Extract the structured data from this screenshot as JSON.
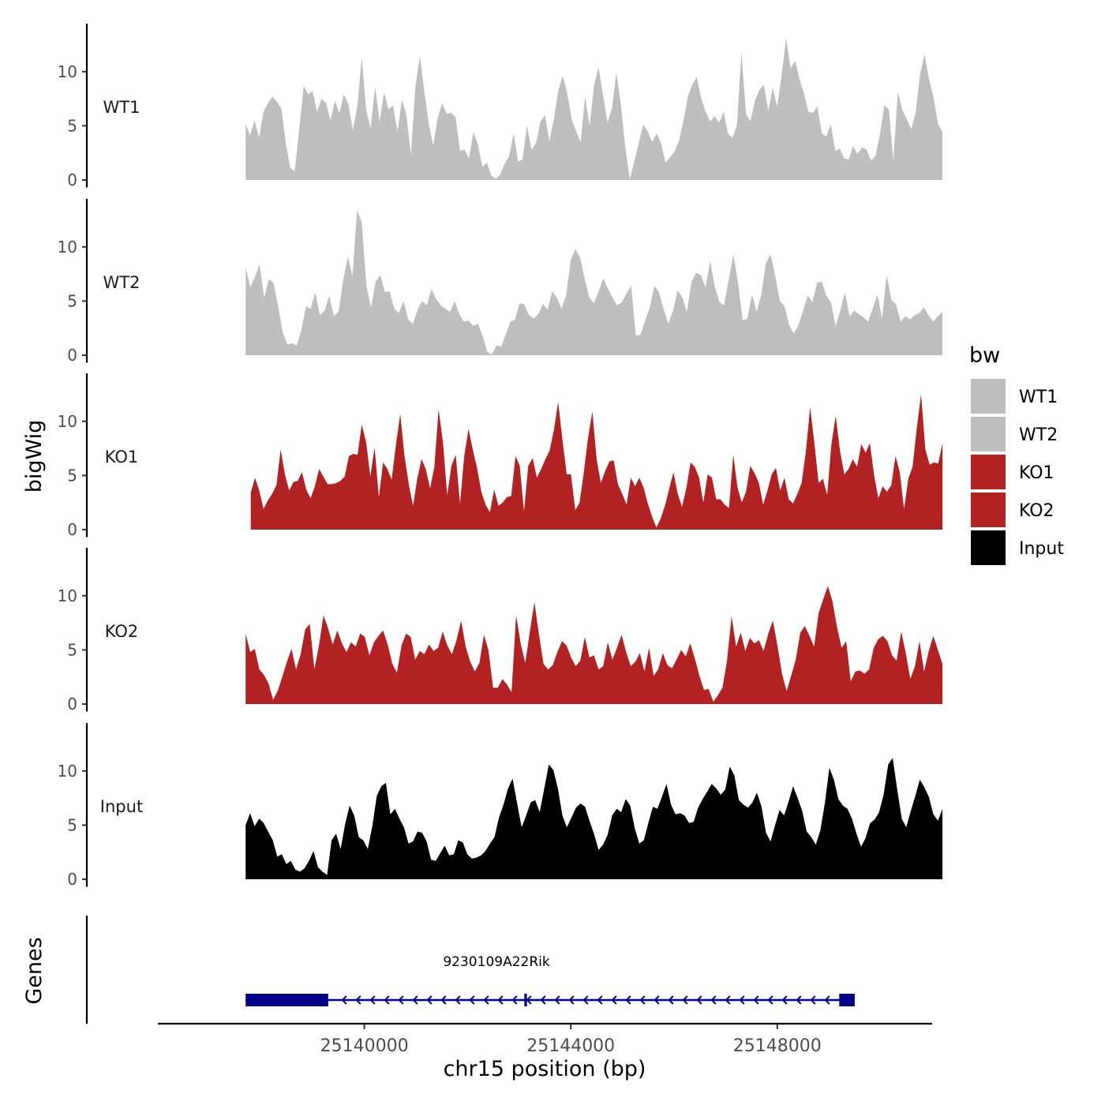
{
  "chart_data": {
    "type": "area",
    "xlabel": "chr15 position (bp)",
    "ylabel": "bigWig",
    "genes_label": "Genes",
    "xlim": [
      25136000,
      25151000
    ],
    "ylim": [
      0,
      14
    ],
    "xticks": [
      25140000,
      25144000,
      25148000
    ],
    "xtick_labels": [
      "25140000",
      "25144000",
      "25148000"
    ],
    "yticks": [
      0,
      5,
      10
    ],
    "ytick_labels": [
      "0",
      "5",
      "10"
    ],
    "legend": {
      "title": "bw",
      "position": "right",
      "entries": [
        {
          "label": "WT1",
          "color": "#bebebe"
        },
        {
          "label": "WT2",
          "color": "#bebebe"
        },
        {
          "label": "KO1",
          "color": "#b22222"
        },
        {
          "label": "KO2",
          "color": "#b22222"
        },
        {
          "label": "Input",
          "color": "#000000"
        }
      ]
    },
    "series": [
      {
        "name": "WT1",
        "color": "#bebebe",
        "x_start": 25137700,
        "x_end": 25151200,
        "values": [
          5.2,
          4.1,
          5.5,
          3.9,
          6.3,
          7.1,
          7.7,
          7.2,
          6.6,
          3.4,
          1.1,
          0.8,
          4.7,
          8.7,
          7.9,
          8.2,
          6.3,
          7.5,
          7.1,
          5.5,
          7.3,
          6.2,
          7.9,
          7.0,
          4.6,
          6.8,
          11.3,
          6.4,
          4.8,
          8.6,
          5.4,
          8.1,
          6.5,
          6.9,
          4.5,
          7.4,
          6.0,
          2.3,
          8.6,
          11.4,
          8.2,
          5.2,
          3.2,
          5.7,
          7.1,
          6.1,
          6.2,
          5.8,
          2.7,
          2.8,
          2.0,
          4.4,
          3.3,
          1.2,
          1.6,
          0.4,
          0.1,
          0.5,
          1.5,
          2.2,
          4.3,
          1.7,
          1.9,
          5.0,
          2.8,
          3.4,
          5.4,
          6.0,
          3.6,
          5.6,
          8.3,
          9.6,
          8.0,
          5.6,
          4.5,
          3.5,
          7.7,
          5.0,
          8.7,
          10.4,
          7.9,
          5.3,
          6.6,
          9.9,
          7.0,
          3.0,
          0.1,
          1.7,
          3.4,
          5.1,
          4.5,
          3.5,
          4.3,
          3.4,
          1.6,
          2.1,
          2.6,
          3.6,
          5.4,
          7.7,
          8.8,
          9.5,
          7.5,
          6.3,
          5.4,
          5.9,
          5.3,
          6.3,
          4.3,
          3.9,
          5.1,
          11.8,
          6.1,
          5.4,
          7.3,
          8.3,
          8.8,
          6.4,
          8.5,
          6.8,
          9.7,
          13.1,
          10.3,
          11.0,
          9.3,
          8.0,
          6.3,
          6.2,
          6.8,
          4.3,
          4.0,
          5.2,
          2.7,
          2.9,
          2.0,
          1.9,
          3.1,
          2.4,
          3.0,
          2.8,
          1.8,
          2.2,
          4.2,
          6.9,
          6.5,
          1.8,
          8.1,
          6.5,
          5.6,
          4.7,
          6.2,
          9.8,
          11.6,
          9.3,
          7.6,
          5.2,
          4.4
        ]
      },
      {
        "name": "WT2",
        "color": "#bebebe",
        "x_start": 25137700,
        "x_end": 25151200,
        "values": [
          8.1,
          6.3,
          7.2,
          8.4,
          5.3,
          7.0,
          6.7,
          4.5,
          2.1,
          1.0,
          1.1,
          0.9,
          2.3,
          4.5,
          4.3,
          5.8,
          3.7,
          4.1,
          5.5,
          3.6,
          4.0,
          6.9,
          9.1,
          7.3,
          13.4,
          12.3,
          6.4,
          4.4,
          6.8,
          7.4,
          5.8,
          5.9,
          4.3,
          3.9,
          5.0,
          3.3,
          2.9,
          4.2,
          5.0,
          4.6,
          6.1,
          5.2,
          4.6,
          4.3,
          4.0,
          5.0,
          3.8,
          3.1,
          3.2,
          2.7,
          2.9,
          1.8,
          0.3,
          0.1,
          0.9,
          0.8,
          1.9,
          3.1,
          3.3,
          4.8,
          4.7,
          3.7,
          3.4,
          3.8,
          4.7,
          4.2,
          5.9,
          5.3,
          4.3,
          5.5,
          8.8,
          9.8,
          9.0,
          7.0,
          5.3,
          4.8,
          5.9,
          7.1,
          6.1,
          5.3,
          4.6,
          4.9,
          5.7,
          6.4,
          1.8,
          1.9,
          3.2,
          4.4,
          6.4,
          5.8,
          4.2,
          2.9,
          4.1,
          6.0,
          5.3,
          4.0,
          6.8,
          7.6,
          7.4,
          6.3,
          8.7,
          6.3,
          4.9,
          4.6,
          7.0,
          9.3,
          6.7,
          3.2,
          3.4,
          5.6,
          4.0,
          5.6,
          8.5,
          9.3,
          7.3,
          5.0,
          4.5,
          2.8,
          2.0,
          2.8,
          4.1,
          5.5,
          4.9,
          6.7,
          6.8,
          5.5,
          4.9,
          2.7,
          4.1,
          5.8,
          3.6,
          4.1,
          3.8,
          3.5,
          3.1,
          4.3,
          5.6,
          3.4,
          7.4,
          5.1,
          4.7,
          3.1,
          3.6,
          3.3,
          3.7,
          3.9,
          4.4,
          3.7,
          3.1,
          3.6,
          4.0
        ]
      },
      {
        "name": "KO1",
        "color": "#b22222",
        "x_start": 25137800,
        "x_end": 25151200,
        "values": [
          3.4,
          4.8,
          3.6,
          1.9,
          2.7,
          3.3,
          4.1,
          7.4,
          5.1,
          3.6,
          4.4,
          4.5,
          5.3,
          3.7,
          2.9,
          4.0,
          5.6,
          4.9,
          4.2,
          4.2,
          4.3,
          4.5,
          4.9,
          6.8,
          7.0,
          6.9,
          9.7,
          8.1,
          4.9,
          7.6,
          3.0,
          6.2,
          5.6,
          4.6,
          7.8,
          10.7,
          6.8,
          4.2,
          2.2,
          4.7,
          6.5,
          5.6,
          3.8,
          5.8,
          11.1,
          8.1,
          3.2,
          5.9,
          6.9,
          2.4,
          6.8,
          9.3,
          7.4,
          5.7,
          3.5,
          2.3,
          1.6,
          3.7,
          2.2,
          2.5,
          3.0,
          3.1,
          6.8,
          5.9,
          1.7,
          5.9,
          6.6,
          4.8,
          5.6,
          6.5,
          7.3,
          9.2,
          11.8,
          8.3,
          5.1,
          5.1,
          1.8,
          2.5,
          5.3,
          8.5,
          10.9,
          6.5,
          4.3,
          5.4,
          6.3,
          6.4,
          4.2,
          3.3,
          2.3,
          4.8,
          4.0,
          4.8,
          3.9,
          2.4,
          1.2,
          0.2,
          1.0,
          2.2,
          3.8,
          5.3,
          3.3,
          2.1,
          3.8,
          6.2,
          5.8,
          4.8,
          2.5,
          5.1,
          4.8,
          2.8,
          2.8,
          2.3,
          2.0,
          6.9,
          3.9,
          2.5,
          3.5,
          5.9,
          5.2,
          4.3,
          2.3,
          3.6,
          5.1,
          5.7,
          3.6,
          4.8,
          2.8,
          2.4,
          3.3,
          4.3,
          7.2,
          11.3,
          8.0,
          4.3,
          4.7,
          3.2,
          7.9,
          10.5,
          7.3,
          5.1,
          5.6,
          6.5,
          5.8,
          7.9,
          7.1,
          8.0,
          5.0,
          2.9,
          4.0,
          3.5,
          4.1,
          6.8,
          5.3,
          1.9,
          4.7,
          5.8,
          9.4,
          12.5,
          7.4,
          6.0,
          6.2,
          6.1,
          8.0
        ]
      },
      {
        "name": "KO2",
        "color": "#b22222",
        "x_start": 25137700,
        "x_end": 25151200,
        "values": [
          6.5,
          4.8,
          5.1,
          3.2,
          2.7,
          1.9,
          0.4,
          1.2,
          2.5,
          3.9,
          5.1,
          3.2,
          4.6,
          6.9,
          7.4,
          3.2,
          5.4,
          8.2,
          7.0,
          5.5,
          6.8,
          5.6,
          4.8,
          5.7,
          5.3,
          6.5,
          6.2,
          4.5,
          5.7,
          6.3,
          6.8,
          5.5,
          3.7,
          2.9,
          5.4,
          6.5,
          6.2,
          4.1,
          4.9,
          4.6,
          5.5,
          4.9,
          5.2,
          6.7,
          5.4,
          4.6,
          5.9,
          7.7,
          5.3,
          3.9,
          3.0,
          3.8,
          6.4,
          4.9,
          1.5,
          1.5,
          2.3,
          1.8,
          1.1,
          8.2,
          5.6,
          3.8,
          6.7,
          9.4,
          6.4,
          3.7,
          3.2,
          3.6,
          4.8,
          5.8,
          5.4,
          4.3,
          3.5,
          4.0,
          6.2,
          4.3,
          4.5,
          3.2,
          3.5,
          5.7,
          4.1,
          5.2,
          6.4,
          4.8,
          3.5,
          3.9,
          4.7,
          3.0,
          5.2,
          2.6,
          3.2,
          4.7,
          3.6,
          3.3,
          4.1,
          5.0,
          4.4,
          5.6,
          4.2,
          2.6,
          1.3,
          1.4,
          0.2,
          0.8,
          1.5,
          4.0,
          8.1,
          5.3,
          6.6,
          4.9,
          6.1,
          5.6,
          5.9,
          4.9,
          6.5,
          7.7,
          5.4,
          2.8,
          1.2,
          2.6,
          4.1,
          6.6,
          7.2,
          6.3,
          5.3,
          8.4,
          9.7,
          10.9,
          9.5,
          7.1,
          5.2,
          5.8,
          2.1,
          3.0,
          3.1,
          2.8,
          3.2,
          5.2,
          6.0,
          6.3,
          5.8,
          4.5,
          4.0,
          6.7,
          4.7,
          2.3,
          3.5,
          5.8,
          3.0,
          4.9,
          6.3,
          5.0,
          3.7
        ]
      },
      {
        "name": "Input",
        "color": "#000000",
        "x_start": 25137700,
        "x_end": 25151200,
        "values": [
          5.0,
          6.1,
          4.9,
          5.6,
          5.2,
          4.4,
          3.6,
          2.1,
          2.3,
          1.4,
          1.7,
          0.9,
          0.7,
          1.0,
          1.7,
          2.6,
          1.1,
          0.7,
          0.4,
          3.6,
          4.2,
          2.8,
          5.1,
          6.8,
          5.9,
          3.9,
          3.6,
          2.8,
          4.9,
          7.7,
          8.6,
          8.9,
          6.0,
          6.5,
          5.6,
          4.8,
          3.3,
          3.5,
          4.4,
          4.3,
          3.5,
          1.8,
          1.7,
          2.4,
          3.1,
          2.2,
          2.3,
          3.6,
          3.4,
          2.3,
          1.9,
          2.0,
          2.2,
          2.6,
          3.3,
          3.9,
          5.7,
          6.9,
          8.4,
          9.3,
          7.0,
          4.8,
          5.9,
          7.1,
          7.3,
          6.2,
          8.4,
          10.6,
          10.1,
          8.4,
          5.9,
          4.8,
          5.7,
          6.6,
          7.0,
          6.7,
          5.4,
          4.2,
          2.7,
          3.2,
          4.1,
          5.9,
          6.5,
          6.2,
          7.4,
          6.8,
          4.7,
          3.3,
          3.6,
          5.2,
          6.7,
          6.5,
          7.6,
          8.8,
          6.9,
          6.0,
          6.1,
          5.9,
          5.2,
          5.3,
          6.6,
          7.4,
          8.1,
          8.8,
          8.4,
          7.8,
          8.3,
          10.4,
          9.6,
          7.3,
          6.9,
          6.6,
          7.1,
          8.0,
          6.7,
          4.3,
          3.5,
          5.0,
          6.4,
          5.9,
          7.2,
          8.6,
          7.5,
          6.3,
          4.4,
          3.9,
          3.2,
          4.5,
          7.0,
          10.3,
          9.2,
          7.4,
          6.8,
          6.5,
          5.6,
          4.2,
          3.0,
          3.8,
          5.2,
          5.5,
          6.2,
          7.8,
          10.6,
          11.2,
          8.3,
          5.6,
          4.8,
          6.3,
          7.7,
          9.2,
          8.5,
          7.6,
          6.0,
          5.4,
          6.5
        ]
      }
    ],
    "gene_track": {
      "gene_name": "9230109A22Rik",
      "strand": "-",
      "color": "#00008b",
      "tx_start": 25137700,
      "tx_end": 25149500,
      "exons": [
        [
          25137700,
          25139300
        ],
        [
          25143100,
          25143150
        ],
        [
          25149200,
          25149500
        ]
      ]
    }
  }
}
